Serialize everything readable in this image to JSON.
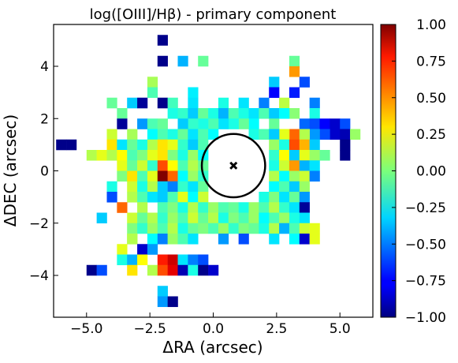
{
  "chart_data": {
    "type": "heatmap",
    "title": "log([OIII]/Hβ) - primary component",
    "xlabel": "ΔRA (arcsec)",
    "ylabel": "ΔDEC (arcsec)",
    "xlim": [
      -6.3,
      6.3
    ],
    "ylim": [
      -5.6,
      5.6
    ],
    "xticks": [
      -5.0,
      -2.5,
      0.0,
      2.5,
      5.0
    ],
    "xtick_labels": [
      "−5.0",
      "−2.5",
      "0.0",
      "2.5",
      "5.0"
    ],
    "yticks": [
      -4,
      -2,
      0,
      2,
      4
    ],
    "ytick_labels": [
      "−4",
      "−2",
      "0",
      "2",
      "4"
    ],
    "colorbar": {
      "colormap": "jet",
      "range": [
        -1.0,
        1.0
      ],
      "ticks": [
        1.0,
        0.75,
        0.5,
        0.25,
        0.0,
        -0.25,
        -0.5,
        -0.75,
        -1.0
      ],
      "tick_labels": [
        "1.00",
        "0.75",
        "0.50",
        "0.25",
        "0.00",
        "−0.25",
        "−0.50",
        "−0.75",
        "−1.00"
      ]
    },
    "pixel_size_arcsec": 0.4,
    "grid": false,
    "marker": {
      "x": 0.8,
      "y": 0.2,
      "symbol": "x"
    },
    "circle": {
      "center": [
        0.8,
        0.2
      ],
      "radius": 1.25
    },
    "pixels": [
      [
        -2.0,
        5.0,
        -0.98
      ],
      [
        -2.0,
        4.2,
        -0.98
      ],
      [
        -1.2,
        4.2,
        -0.4
      ],
      [
        -0.4,
        4.2,
        -0.05
      ],
      [
        -2.4,
        3.4,
        0.08
      ],
      [
        -0.8,
        3.0,
        -0.28
      ],
      [
        -2.4,
        3.0,
        -0.1
      ],
      [
        -4.0,
        2.6,
        -0.05
      ],
      [
        -3.2,
        2.6,
        -0.35
      ],
      [
        -2.8,
        2.6,
        -0.95
      ],
      [
        -2.0,
        2.6,
        -0.98
      ],
      [
        -1.6,
        2.6,
        -0.12
      ],
      [
        -0.8,
        2.6,
        -0.3
      ],
      [
        0.4,
        2.6,
        -0.2
      ],
      [
        1.2,
        2.6,
        -0.3
      ],
      [
        2.0,
        2.6,
        -0.5
      ],
      [
        2.8,
        2.6,
        0.12
      ],
      [
        3.2,
        4.2,
        -0.05
      ],
      [
        3.2,
        3.8,
        0.45
      ],
      [
        3.6,
        3.4,
        -0.6
      ],
      [
        3.2,
        3.0,
        -0.7
      ],
      [
        2.4,
        3.4,
        -0.35
      ],
      [
        2.4,
        3.0,
        -0.75
      ],
      [
        4.0,
        2.6,
        -0.5
      ],
      [
        3.2,
        2.2,
        0.02
      ],
      [
        4.0,
        2.2,
        -0.2
      ],
      [
        -3.6,
        2.2,
        -0.05
      ],
      [
        -3.6,
        1.8,
        -0.95
      ],
      [
        -2.8,
        1.8,
        -0.45
      ],
      [
        -2.4,
        1.8,
        -0.1
      ],
      [
        -1.6,
        2.2,
        -0.2
      ],
      [
        -1.2,
        2.2,
        -0.15
      ],
      [
        -0.8,
        2.2,
        -0.35
      ],
      [
        -0.4,
        2.2,
        -0.05
      ],
      [
        0.0,
        2.2,
        -0.2
      ],
      [
        0.4,
        2.2,
        -0.4
      ],
      [
        0.8,
        2.2,
        -0.1
      ],
      [
        1.2,
        2.2,
        -0.2
      ],
      [
        1.6,
        2.2,
        -0.3
      ],
      [
        2.0,
        2.2,
        -0.1
      ],
      [
        2.4,
        2.2,
        -0.35
      ],
      [
        2.8,
        2.2,
        -0.25
      ],
      [
        3.6,
        1.8,
        -0.55
      ],
      [
        4.0,
        1.8,
        -0.6
      ],
      [
        4.4,
        1.8,
        -0.75
      ],
      [
        4.8,
        1.8,
        -0.85
      ],
      [
        5.2,
        1.8,
        -0.6
      ],
      [
        4.8,
        1.4,
        -0.85
      ],
      [
        5.2,
        1.4,
        -0.9
      ],
      [
        4.4,
        1.4,
        -0.6
      ],
      [
        4.0,
        1.4,
        -0.45
      ],
      [
        3.2,
        1.4,
        0.55
      ],
      [
        2.8,
        1.4,
        0.2
      ],
      [
        2.4,
        1.8,
        -0.05
      ],
      [
        1.6,
        1.8,
        -0.25
      ],
      [
        1.2,
        1.8,
        -0.05
      ],
      [
        0.8,
        1.8,
        -0.2
      ],
      [
        0.4,
        1.8,
        -0.3
      ],
      [
        0.0,
        1.8,
        -0.1
      ],
      [
        -0.4,
        1.8,
        -0.2
      ],
      [
        -0.8,
        1.8,
        -0.15
      ],
      [
        -1.2,
        1.8,
        -0.35
      ],
      [
        -2.0,
        1.8,
        -0.05
      ],
      [
        -4.0,
        1.4,
        0.15
      ],
      [
        -3.2,
        1.4,
        0.08
      ],
      [
        -2.4,
        1.4,
        -0.25
      ],
      [
        -2.0,
        1.4,
        -0.1
      ],
      [
        -1.6,
        1.4,
        -0.2
      ],
      [
        -1.2,
        1.4,
        -0.05
      ],
      [
        -0.8,
        1.4,
        -0.3
      ],
      [
        -0.4,
        1.4,
        -0.1
      ],
      [
        0.0,
        1.4,
        -0.25
      ],
      [
        1.6,
        1.4,
        -0.2
      ],
      [
        2.0,
        1.4,
        -0.1
      ],
      [
        2.4,
        1.4,
        -0.35
      ],
      [
        3.6,
        1.4,
        0.1
      ],
      [
        5.6,
        1.4,
        0.05
      ],
      [
        -6.0,
        1.0,
        -0.98
      ],
      [
        -5.6,
        1.0,
        -0.98
      ],
      [
        -4.8,
        0.6,
        0.1
      ],
      [
        -4.4,
        0.6,
        0.2
      ],
      [
        -4.0,
        1.0,
        0.3
      ],
      [
        -3.6,
        1.0,
        -0.3
      ],
      [
        -3.2,
        1.0,
        -0.05
      ],
      [
        -2.8,
        1.0,
        -0.2
      ],
      [
        -2.4,
        1.0,
        0.1
      ],
      [
        -2.0,
        1.0,
        0.3
      ],
      [
        -1.6,
        1.0,
        0.2
      ],
      [
        -1.2,
        1.0,
        -0.15
      ],
      [
        -0.8,
        1.0,
        -0.35
      ],
      [
        -0.4,
        1.0,
        -0.1
      ],
      [
        2.4,
        1.0,
        0.05
      ],
      [
        2.8,
        1.0,
        -0.2
      ],
      [
        3.2,
        1.0,
        0.6
      ],
      [
        3.6,
        1.0,
        0.4
      ],
      [
        4.0,
        1.0,
        -0.35
      ],
      [
        5.2,
        1.0,
        -0.98
      ],
      [
        -4.0,
        0.6,
        0.1
      ],
      [
        -3.6,
        0.6,
        0.25
      ],
      [
        -3.2,
        0.6,
        -0.1
      ],
      [
        -2.8,
        0.6,
        0.0
      ],
      [
        -2.4,
        0.6,
        0.2
      ],
      [
        -2.0,
        0.6,
        0.3
      ],
      [
        -1.6,
        0.6,
        0.0
      ],
      [
        -1.2,
        0.6,
        -0.2
      ],
      [
        -0.8,
        0.6,
        0.05
      ],
      [
        -0.4,
        0.6,
        -0.25
      ],
      [
        2.4,
        0.6,
        -0.15
      ],
      [
        2.8,
        0.6,
        0.25
      ],
      [
        3.2,
        0.6,
        -0.35
      ],
      [
        3.6,
        0.6,
        0.2
      ],
      [
        4.0,
        0.6,
        0.05
      ],
      [
        4.4,
        0.6,
        -0.05
      ],
      [
        5.2,
        0.6,
        -0.98
      ],
      [
        -3.6,
        0.2,
        0.2
      ],
      [
        -3.2,
        0.2,
        -0.05
      ],
      [
        -2.8,
        0.2,
        0.15
      ],
      [
        -2.4,
        0.2,
        -0.15
      ],
      [
        -2.0,
        0.2,
        0.6
      ],
      [
        -1.6,
        0.2,
        0.25
      ],
      [
        -1.2,
        0.2,
        -0.1
      ],
      [
        -0.8,
        0.2,
        0.1
      ],
      [
        -0.4,
        0.2,
        -0.05
      ],
      [
        2.4,
        0.2,
        -0.2
      ],
      [
        2.8,
        0.2,
        0.15
      ],
      [
        3.2,
        0.2,
        0.45
      ],
      [
        3.6,
        0.2,
        -0.4
      ],
      [
        4.0,
        0.2,
        -0.3
      ],
      [
        -3.6,
        -0.2,
        0.0
      ],
      [
        -3.2,
        -0.2,
        0.3
      ],
      [
        -2.8,
        -0.2,
        -0.1
      ],
      [
        -2.4,
        -0.2,
        0.2
      ],
      [
        -2.0,
        -0.2,
        1.0
      ],
      [
        -1.6,
        -0.2,
        0.55
      ],
      [
        -1.2,
        -0.2,
        -0.25
      ],
      [
        -0.8,
        -0.2,
        0.05
      ],
      [
        -0.4,
        -0.2,
        -0.15
      ],
      [
        2.4,
        -0.2,
        0.1
      ],
      [
        2.8,
        -0.2,
        -0.25
      ],
      [
        3.2,
        -0.2,
        0.05
      ],
      [
        3.6,
        -0.2,
        0.15
      ],
      [
        4.0,
        -0.2,
        -0.5
      ],
      [
        -4.0,
        -0.6,
        -0.2
      ],
      [
        -3.2,
        -0.6,
        0.15
      ],
      [
        -2.8,
        -0.6,
        -0.2
      ],
      [
        -2.4,
        -0.6,
        0.1
      ],
      [
        -2.0,
        -0.6,
        -0.35
      ],
      [
        -1.6,
        -0.6,
        -0.5
      ],
      [
        -1.2,
        -0.6,
        -0.15
      ],
      [
        -0.8,
        -0.6,
        -0.3
      ],
      [
        -0.4,
        -0.6,
        -0.05
      ],
      [
        2.4,
        -0.6,
        -0.25
      ],
      [
        2.8,
        -0.6,
        -0.1
      ],
      [
        3.2,
        -0.6,
        -0.35
      ],
      [
        3.6,
        -0.6,
        0.05
      ],
      [
        -4.0,
        -1.0,
        -0.6
      ],
      [
        -3.2,
        -1.0,
        0.1
      ],
      [
        -2.8,
        -1.0,
        -0.1
      ],
      [
        -2.4,
        -1.0,
        -0.3
      ],
      [
        -2.0,
        -1.0,
        -0.35
      ],
      [
        -1.6,
        -1.0,
        -0.1
      ],
      [
        -1.2,
        -1.0,
        0.2
      ],
      [
        -0.8,
        -1.0,
        -0.25
      ],
      [
        -0.4,
        -1.0,
        0.15
      ],
      [
        2.0,
        -1.0,
        -0.2
      ],
      [
        2.4,
        -1.0,
        0.0
      ],
      [
        2.8,
        -1.0,
        -0.3
      ],
      [
        3.2,
        -1.0,
        -0.05
      ],
      [
        3.6,
        -1.0,
        -0.45
      ],
      [
        -3.6,
        -1.4,
        0.55
      ],
      [
        -2.8,
        -1.4,
        0.1
      ],
      [
        -2.0,
        -1.4,
        -0.1
      ],
      [
        -1.6,
        -1.4,
        0.0
      ],
      [
        -1.2,
        -1.4,
        -0.2
      ],
      [
        -0.8,
        -1.4,
        0.1
      ],
      [
        -0.4,
        -1.4,
        -0.15
      ],
      [
        0.0,
        -1.4,
        0.05
      ],
      [
        0.4,
        -1.4,
        -0.1
      ],
      [
        0.8,
        -1.4,
        -0.05
      ],
      [
        1.2,
        -1.4,
        -0.2
      ],
      [
        1.6,
        -1.4,
        0.05
      ],
      [
        2.0,
        -1.4,
        -0.1
      ],
      [
        2.4,
        -1.4,
        0.1
      ],
      [
        2.8,
        -1.4,
        -0.15
      ],
      [
        3.2,
        -1.4,
        -0.3
      ],
      [
        3.6,
        -1.4,
        -0.95
      ],
      [
        -4.4,
        -1.8,
        -0.35
      ],
      [
        -3.2,
        -1.8,
        0.15
      ],
      [
        -2.8,
        -1.8,
        -0.05
      ],
      [
        -2.4,
        -1.8,
        0.1
      ],
      [
        -2.0,
        -1.8,
        -0.15
      ],
      [
        -1.6,
        -1.8,
        0.05
      ],
      [
        -1.2,
        -1.8,
        -0.1
      ],
      [
        -0.8,
        -1.8,
        0.15
      ],
      [
        -0.4,
        -1.8,
        -0.05
      ],
      [
        0.0,
        -1.8,
        0.1
      ],
      [
        0.4,
        -1.8,
        -0.2
      ],
      [
        0.8,
        -1.8,
        0.0
      ],
      [
        1.2,
        -1.8,
        -0.1
      ],
      [
        1.6,
        -1.8,
        0.05
      ],
      [
        2.0,
        -1.8,
        -0.25
      ],
      [
        2.4,
        -1.8,
        -0.1
      ],
      [
        2.8,
        -1.8,
        0.05
      ],
      [
        3.2,
        -1.8,
        -0.2
      ],
      [
        3.6,
        -1.8,
        -0.3
      ],
      [
        -3.2,
        -2.2,
        0.0
      ],
      [
        -2.8,
        -2.2,
        -0.15
      ],
      [
        -2.4,
        -2.2,
        0.05
      ],
      [
        -2.0,
        -2.2,
        -0.1
      ],
      [
        -1.6,
        -2.2,
        0.1
      ],
      [
        -1.2,
        -2.2,
        -0.2
      ],
      [
        -0.8,
        -2.2,
        -0.05
      ],
      [
        -0.4,
        -2.2,
        0.0
      ],
      [
        0.0,
        -2.2,
        -0.1
      ],
      [
        0.4,
        -2.2,
        0.05
      ],
      [
        0.8,
        -2.2,
        -0.15
      ],
      [
        1.2,
        -2.2,
        0.0
      ],
      [
        1.6,
        -2.2,
        -0.05
      ],
      [
        2.0,
        -2.2,
        -0.2
      ],
      [
        2.4,
        -2.2,
        0.1
      ],
      [
        2.8,
        -2.2,
        -0.4
      ],
      [
        3.2,
        -2.2,
        -0.1
      ],
      [
        3.6,
        -2.2,
        0.15
      ],
      [
        4.0,
        -2.2,
        0.2
      ],
      [
        -3.2,
        -2.6,
        0.1
      ],
      [
        -2.4,
        -2.6,
        -0.25
      ],
      [
        -2.0,
        -2.6,
        -0.5
      ],
      [
        -1.6,
        -2.6,
        0.05
      ],
      [
        -1.2,
        -2.6,
        -0.1
      ],
      [
        -0.8,
        -2.6,
        -0.3
      ],
      [
        0.4,
        -2.6,
        -0.45
      ],
      [
        1.2,
        -2.6,
        -0.6
      ],
      [
        2.4,
        -2.6,
        -0.3
      ],
      [
        3.2,
        -2.6,
        -0.25
      ],
      [
        3.6,
        -2.6,
        -0.85
      ],
      [
        4.0,
        -2.6,
        0.2
      ],
      [
        -3.2,
        -2.6,
        0.1
      ],
      [
        -2.8,
        -3.0,
        -0.85
      ],
      [
        -2.4,
        -3.0,
        -0.45
      ],
      [
        -3.6,
        -3.0,
        0.2
      ],
      [
        -3.6,
        -3.4,
        -0.2
      ],
      [
        -3.2,
        -3.4,
        -0.4
      ],
      [
        -2.8,
        -3.4,
        0.25
      ],
      [
        -2.0,
        -3.4,
        0.7
      ],
      [
        -1.6,
        -3.4,
        0.85
      ],
      [
        -1.2,
        -3.4,
        -0.3
      ],
      [
        -0.8,
        -3.4,
        -0.5
      ],
      [
        -0.4,
        -3.4,
        -0.6
      ],
      [
        -2.4,
        -3.8,
        0.1
      ],
      [
        -2.0,
        -3.8,
        0.6
      ],
      [
        -1.6,
        -3.8,
        0.8
      ],
      [
        -1.2,
        -3.8,
        -0.9
      ],
      [
        -0.8,
        -3.8,
        -0.2
      ],
      [
        -0.4,
        -3.8,
        -0.98
      ],
      [
        0.0,
        -3.8,
        -0.85
      ],
      [
        -4.8,
        -3.8,
        -0.98
      ],
      [
        -4.4,
        -3.8,
        -0.6
      ],
      [
        -3.2,
        -3.8,
        0.3
      ],
      [
        -2.0,
        -4.6,
        -0.35
      ],
      [
        -2.0,
        -5.0,
        -0.45
      ],
      [
        -1.6,
        -5.0,
        -0.98
      ]
    ]
  }
}
